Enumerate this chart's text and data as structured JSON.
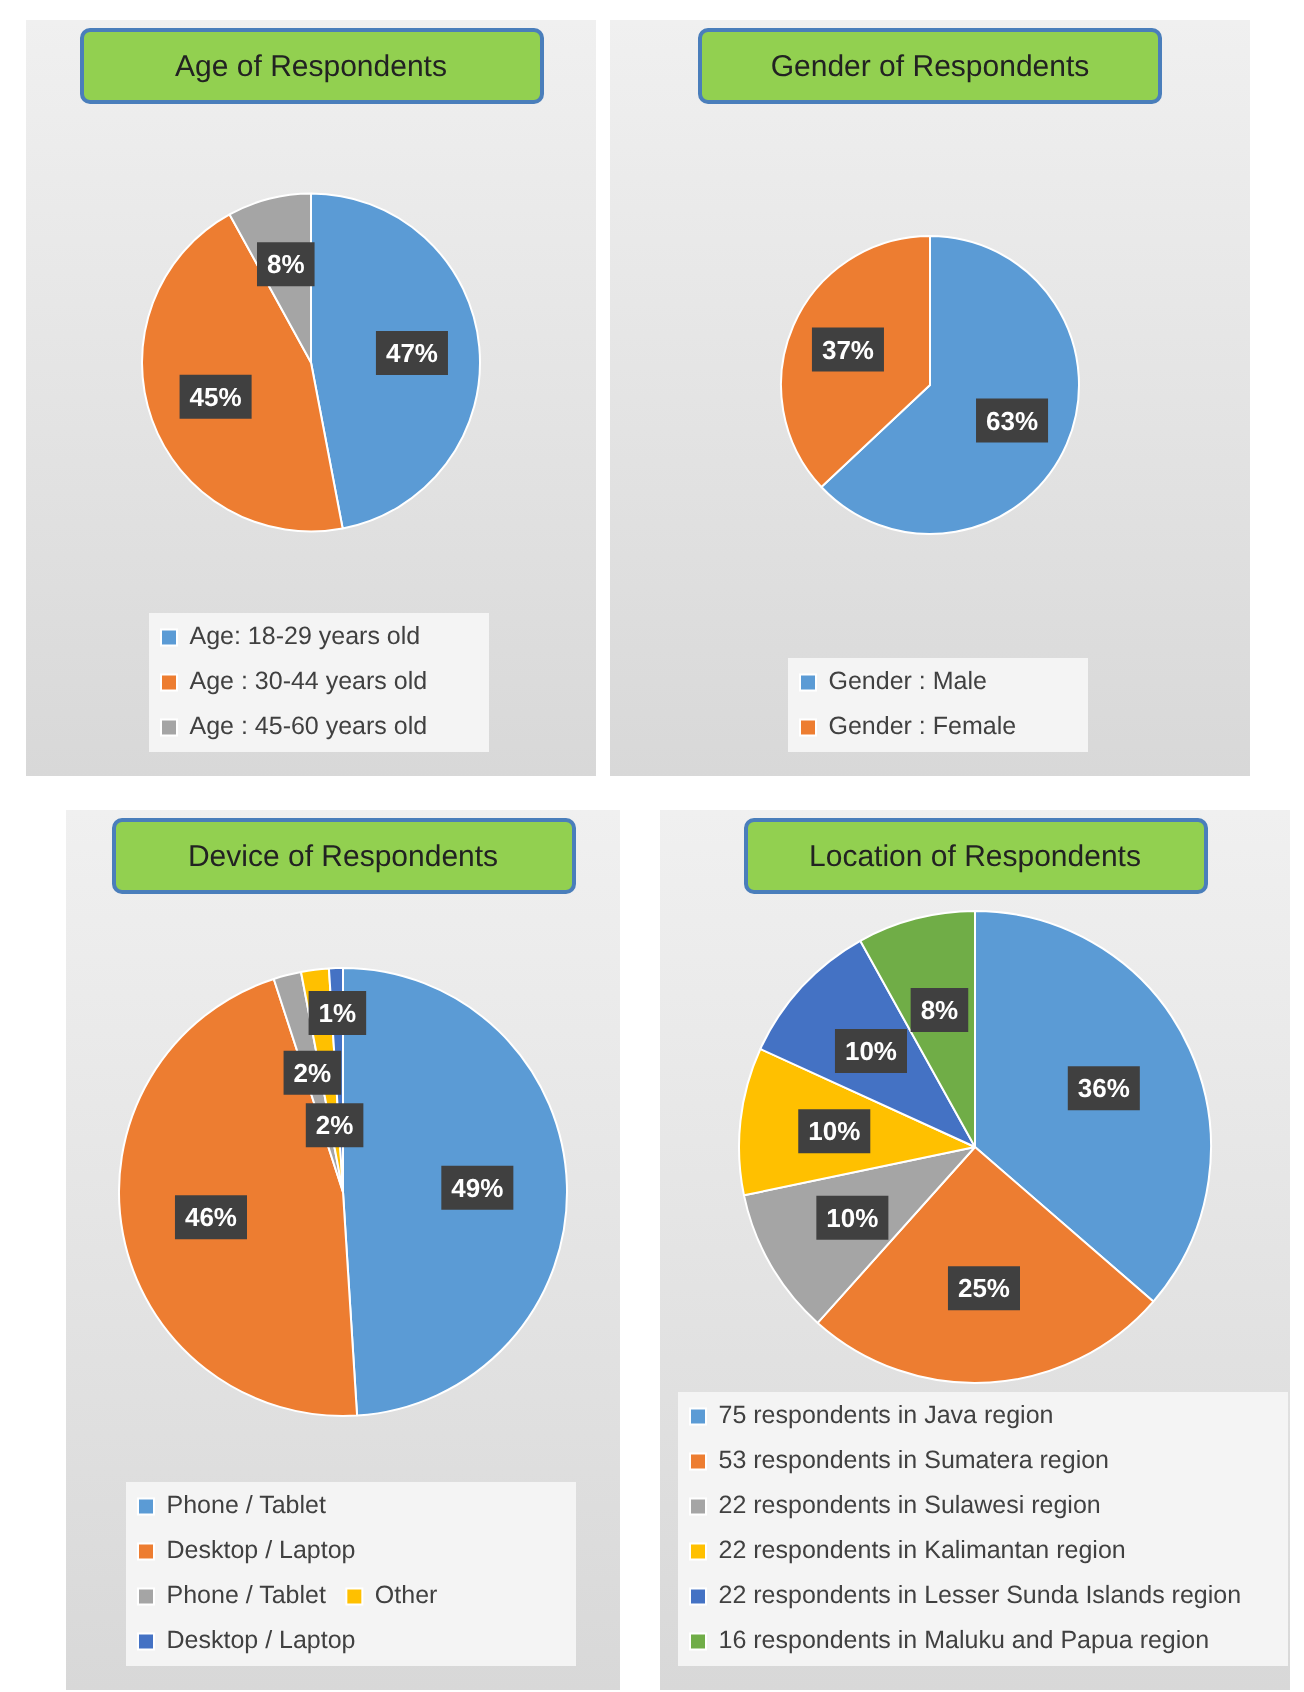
{
  "chart_data": [
    {
      "type": "pie",
      "title": "Age of Respondents",
      "categories": [
        "Age: 18-29 years old",
        "Age : 30-44 years old",
        "Age : 45-60 years old"
      ],
      "values": [
        47,
        45,
        8
      ],
      "colors": [
        "#5b9bd5",
        "#ed7d31",
        "#a5a5a5"
      ],
      "value_labels": [
        "47%",
        "45%",
        "8%"
      ],
      "legend": "bottom"
    },
    {
      "type": "pie",
      "title": "Gender of Respondents",
      "categories": [
        "Gender : Male",
        "Gender : Female"
      ],
      "values": [
        63,
        37
      ],
      "colors": [
        "#5b9bd5",
        "#ed7d31"
      ],
      "value_labels": [
        "63%",
        "37%"
      ],
      "legend": "bottom"
    },
    {
      "type": "pie",
      "title": "Device of Respondents",
      "categories": [
        "Phone / Tablet",
        "Desktop / Laptop",
        "Phone / Tablet",
        "Other",
        "Desktop / Laptop"
      ],
      "values": [
        49,
        46,
        2,
        2,
        1
      ],
      "colors": [
        "#5b9bd5",
        "#ed7d31",
        "#a5a5a5",
        "#ffc000",
        "#4472c4"
      ],
      "value_labels": [
        "49%",
        "46%",
        "2%",
        "2%",
        "1%"
      ],
      "legend": "bottom"
    },
    {
      "type": "pie",
      "title": "Location of Respondents",
      "categories": [
        "75 respondents in Java region",
        "53 respondents in Sumatera region",
        "22 respondents in Sulawesi region",
        "22 respondents in Kalimantan region",
        "22 respondents in Lesser Sunda Islands region",
        "16 respondents in Maluku and Papua region"
      ],
      "values": [
        36,
        25,
        10,
        10,
        10,
        8
      ],
      "colors": [
        "#5b9bd5",
        "#ed7d31",
        "#a5a5a5",
        "#ffc000",
        "#4472c4",
        "#70ad47"
      ],
      "value_labels": [
        "36%",
        "25%",
        "10%",
        "10%",
        "10%",
        "8%"
      ],
      "legend": "bottom"
    }
  ]
}
